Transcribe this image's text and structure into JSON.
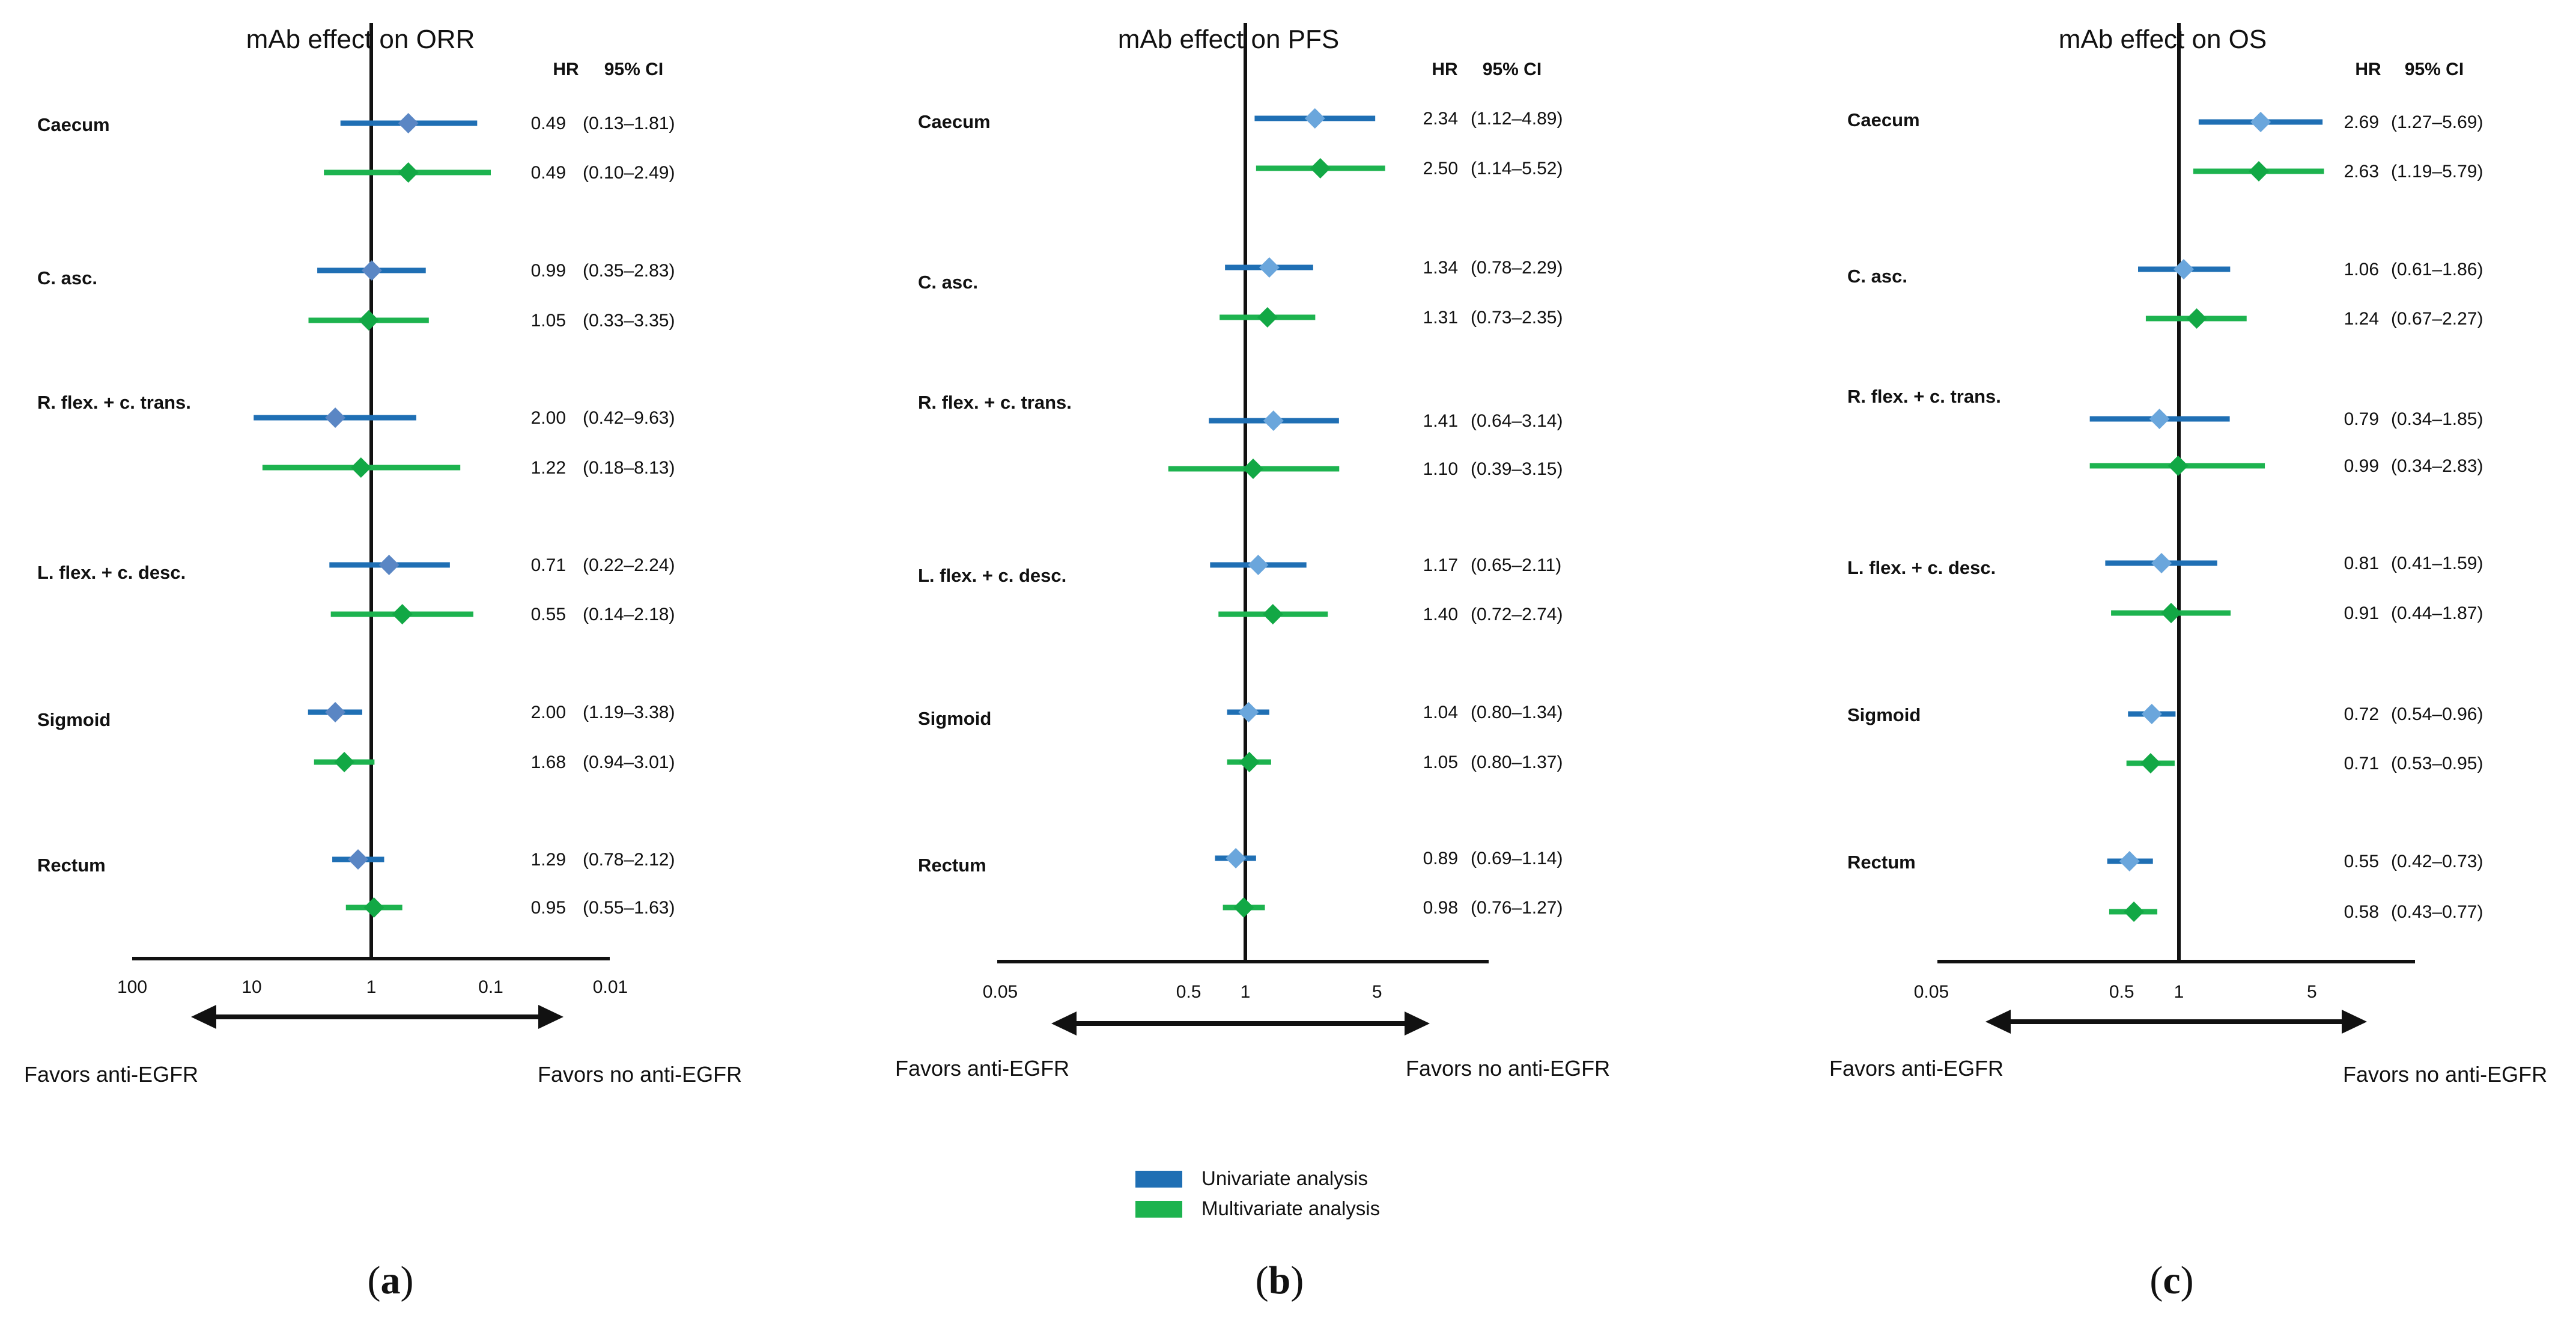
{
  "chart_data": [
    {
      "type": "forest",
      "panel_label": "a",
      "title": "mAb effect on ORR",
      "header_hr": "HR",
      "header_ci": "95% CI",
      "axis_scale": "log",
      "axis_reversed": true,
      "xlim": [
        100,
        0.01
      ],
      "ticks": [
        100,
        10,
        1,
        0.1,
        0.01
      ],
      "tick_labels": [
        "100",
        "10",
        "1",
        "0.1",
        "0.01"
      ],
      "favors_left": "Favors anti-EGFR",
      "favors_right": "Favors no anti-EGFR",
      "categories": [
        {
          "label": "Caecum",
          "rows": [
            {
              "series": "Univariate analysis",
              "hr": 0.49,
              "lo": 0.13,
              "hi": 1.81,
              "hr_text": "0.49",
              "ci_text": "(0.13–1.81)"
            },
            {
              "series": "Multivariate analysis",
              "hr": 0.49,
              "lo": 0.1,
              "hi": 2.49,
              "hr_text": "0.49",
              "ci_text": "(0.10–2.49)"
            }
          ]
        },
        {
          "label": "C. asc.",
          "rows": [
            {
              "series": "Univariate analysis",
              "hr": 0.99,
              "lo": 0.35,
              "hi": 2.83,
              "hr_text": "0.99",
              "ci_text": "(0.35–2.83)"
            },
            {
              "series": "Multivariate analysis",
              "hr": 1.05,
              "lo": 0.33,
              "hi": 3.35,
              "hr_text": "1.05",
              "ci_text": "(0.33–3.35)"
            }
          ]
        },
        {
          "label": "R. flex. + c. trans.",
          "rows": [
            {
              "series": "Univariate analysis",
              "hr": 2.0,
              "lo": 0.42,
              "hi": 9.63,
              "hr_text": "2.00",
              "ci_text": "(0.42–9.63)"
            },
            {
              "series": "Multivariate analysis",
              "hr": 1.22,
              "lo": 0.18,
              "hi": 8.13,
              "hr_text": "1.22",
              "ci_text": "(0.18–8.13)"
            }
          ]
        },
        {
          "label": "L. flex. + c. desc.",
          "rows": [
            {
              "series": "Univariate analysis",
              "hr": 0.71,
              "lo": 0.22,
              "hi": 2.24,
              "hr_text": "0.71",
              "ci_text": "(0.22–2.24)"
            },
            {
              "series": "Multivariate analysis",
              "hr": 0.55,
              "lo": 0.14,
              "hi": 2.18,
              "hr_text": "0.55",
              "ci_text": "(0.14–2.18)"
            }
          ]
        },
        {
          "label": "Sigmoid",
          "rows": [
            {
              "series": "Univariate analysis",
              "hr": 2.0,
              "lo": 1.19,
              "hi": 3.38,
              "hr_text": "2.00",
              "ci_text": "(1.19–3.38)"
            },
            {
              "series": "Multivariate analysis",
              "hr": 1.68,
              "lo": 0.94,
              "hi": 3.01,
              "hr_text": "1.68",
              "ci_text": "(0.94–3.01)"
            }
          ]
        },
        {
          "label": "Rectum",
          "rows": [
            {
              "series": "Univariate analysis",
              "hr": 1.29,
              "lo": 0.78,
              "hi": 2.12,
              "hr_text": "1.29",
              "ci_text": "(0.78–2.12)"
            },
            {
              "series": "Multivariate analysis",
              "hr": 0.95,
              "lo": 0.55,
              "hi": 1.63,
              "hr_text": "0.95",
              "ci_text": "(0.55–1.63)"
            }
          ]
        }
      ]
    },
    {
      "type": "forest",
      "panel_label": "b",
      "title": "mAb effect on PFS",
      "header_hr": "HR",
      "header_ci": "95% CI",
      "axis_scale": "log",
      "axis_reversed": false,
      "xlim": [
        0.05,
        20
      ],
      "ticks": [
        0.05,
        0.5,
        1,
        5
      ],
      "tick_labels": [
        "0.05",
        "0.5",
        "1",
        "5"
      ],
      "favors_left": "Favors anti-EGFR",
      "favors_right": "Favors no anti-EGFR",
      "categories": [
        {
          "label": "Caecum",
          "rows": [
            {
              "series": "Univariate analysis",
              "hr": 2.34,
              "lo": 1.12,
              "hi": 4.89,
              "hr_text": "2.34",
              "ci_text": "(1.12–4.89)"
            },
            {
              "series": "Multivariate analysis",
              "hr": 2.5,
              "lo": 1.14,
              "hi": 5.52,
              "hr_text": "2.50",
              "ci_text": "(1.14–5.52)"
            }
          ]
        },
        {
          "label": "C. asc.",
          "rows": [
            {
              "series": "Univariate analysis",
              "hr": 1.34,
              "lo": 0.78,
              "hi": 2.29,
              "hr_text": "1.34",
              "ci_text": "(0.78–2.29)"
            },
            {
              "series": "Multivariate analysis",
              "hr": 1.31,
              "lo": 0.73,
              "hi": 2.35,
              "hr_text": "1.31",
              "ci_text": "(0.73–2.35)"
            }
          ]
        },
        {
          "label": "R. flex. + c. trans.",
          "rows": [
            {
              "series": "Univariate analysis",
              "hr": 1.41,
              "lo": 0.64,
              "hi": 3.14,
              "hr_text": "1.41",
              "ci_text": "(0.64–3.14)"
            },
            {
              "series": "Multivariate analysis",
              "hr": 1.1,
              "lo": 0.39,
              "hi": 3.15,
              "hr_text": "1.10",
              "ci_text": "(0.39–3.15)"
            }
          ]
        },
        {
          "label": "L. flex. + c. desc.",
          "rows": [
            {
              "series": "Univariate analysis",
              "hr": 1.17,
              "lo": 0.65,
              "hi": 2.11,
              "hr_text": "1.17",
              "ci_text": "(0.65–2.11)"
            },
            {
              "series": "Multivariate analysis",
              "hr": 1.4,
              "lo": 0.72,
              "hi": 2.74,
              "hr_text": "1.40",
              "ci_text": "(0.72–2.74)"
            }
          ]
        },
        {
          "label": "Sigmoid",
          "rows": [
            {
              "series": "Univariate analysis",
              "hr": 1.04,
              "lo": 0.8,
              "hi": 1.34,
              "hr_text": "1.04",
              "ci_text": "(0.80–1.34)"
            },
            {
              "series": "Multivariate analysis",
              "hr": 1.05,
              "lo": 0.8,
              "hi": 1.37,
              "hr_text": "1.05",
              "ci_text": "(0.80–1.37)"
            }
          ]
        },
        {
          "label": "Rectum",
          "rows": [
            {
              "series": "Univariate analysis",
              "hr": 0.89,
              "lo": 0.69,
              "hi": 1.14,
              "hr_text": "0.89",
              "ci_text": "(0.69–1.14)"
            },
            {
              "series": "Multivariate analysis",
              "hr": 0.98,
              "lo": 0.76,
              "hi": 1.27,
              "hr_text": "0.98",
              "ci_text": "(0.76–1.27)"
            }
          ]
        }
      ]
    },
    {
      "type": "forest",
      "panel_label": "c",
      "title": "mAb effect on OS",
      "header_hr": "HR",
      "header_ci": "95% CI",
      "axis_scale": "log",
      "axis_reversed": false,
      "xlim": [
        0.05,
        20
      ],
      "ticks": [
        0.05,
        0.5,
        1,
        5
      ],
      "tick_labels": [
        "0.05",
        "0.5",
        "1",
        "5"
      ],
      "favors_left": "Favors anti-EGFR",
      "favors_right": "Favors no anti-EGFR",
      "categories": [
        {
          "label": "Caecum",
          "rows": [
            {
              "series": "Univariate analysis",
              "hr": 2.69,
              "lo": 1.27,
              "hi": 5.69,
              "hr_text": "2.69",
              "ci_text": "(1.27–5.69)"
            },
            {
              "series": "Multivariate analysis",
              "hr": 2.63,
              "lo": 1.19,
              "hi": 5.79,
              "hr_text": "2.63",
              "ci_text": "(1.19–5.79)"
            }
          ]
        },
        {
          "label": "C. asc.",
          "rows": [
            {
              "series": "Univariate analysis",
              "hr": 1.06,
              "lo": 0.61,
              "hi": 1.86,
              "hr_text": "1.06",
              "ci_text": "(0.61–1.86)"
            },
            {
              "series": "Multivariate analysis",
              "hr": 1.24,
              "lo": 0.67,
              "hi": 2.27,
              "hr_text": "1.24",
              "ci_text": "(0.67–2.27)"
            }
          ]
        },
        {
          "label": "R. flex. + c. trans.",
          "rows": [
            {
              "series": "Univariate analysis",
              "hr": 0.79,
              "lo": 0.34,
              "hi": 1.85,
              "hr_text": "0.79",
              "ci_text": "(0.34–1.85)"
            },
            {
              "series": "Multivariate analysis",
              "hr": 0.99,
              "lo": 0.34,
              "hi": 2.83,
              "hr_text": "0.99",
              "ci_text": "(0.34–2.83)"
            }
          ]
        },
        {
          "label": "L. flex. + c. desc.",
          "rows": [
            {
              "series": "Univariate analysis",
              "hr": 0.81,
              "lo": 0.41,
              "hi": 1.59,
              "hr_text": "0.81",
              "ci_text": "(0.41–1.59)"
            },
            {
              "series": "Multivariate analysis",
              "hr": 0.91,
              "lo": 0.44,
              "hi": 1.87,
              "hr_text": "0.91",
              "ci_text": "(0.44–1.87)"
            }
          ]
        },
        {
          "label": "Sigmoid",
          "rows": [
            {
              "series": "Univariate analysis",
              "hr": 0.72,
              "lo": 0.54,
              "hi": 0.96,
              "hr_text": "0.72",
              "ci_text": "(0.54–0.96)"
            },
            {
              "series": "Multivariate analysis",
              "hr": 0.71,
              "lo": 0.53,
              "hi": 0.95,
              "hr_text": "0.71",
              "ci_text": "(0.53–0.95)"
            }
          ]
        },
        {
          "label": "Rectum",
          "rows": [
            {
              "series": "Univariate analysis",
              "hr": 0.55,
              "lo": 0.42,
              "hi": 0.73,
              "hr_text": "0.55",
              "ci_text": "(0.42–0.73)"
            },
            {
              "series": "Multivariate analysis",
              "hr": 0.58,
              "lo": 0.43,
              "hi": 0.77,
              "hr_text": "0.58",
              "ci_text": "(0.43–0.77)"
            }
          ]
        }
      ]
    }
  ],
  "legend": [
    {
      "label": "Univariate analysis",
      "color": "#1f6fb4",
      "marker_color_orr": "#5a86c4",
      "marker_color": "#6aa6dc"
    },
    {
      "label": "Multivariate analysis",
      "color": "#1db34f",
      "marker_color": "#12a845"
    }
  ]
}
